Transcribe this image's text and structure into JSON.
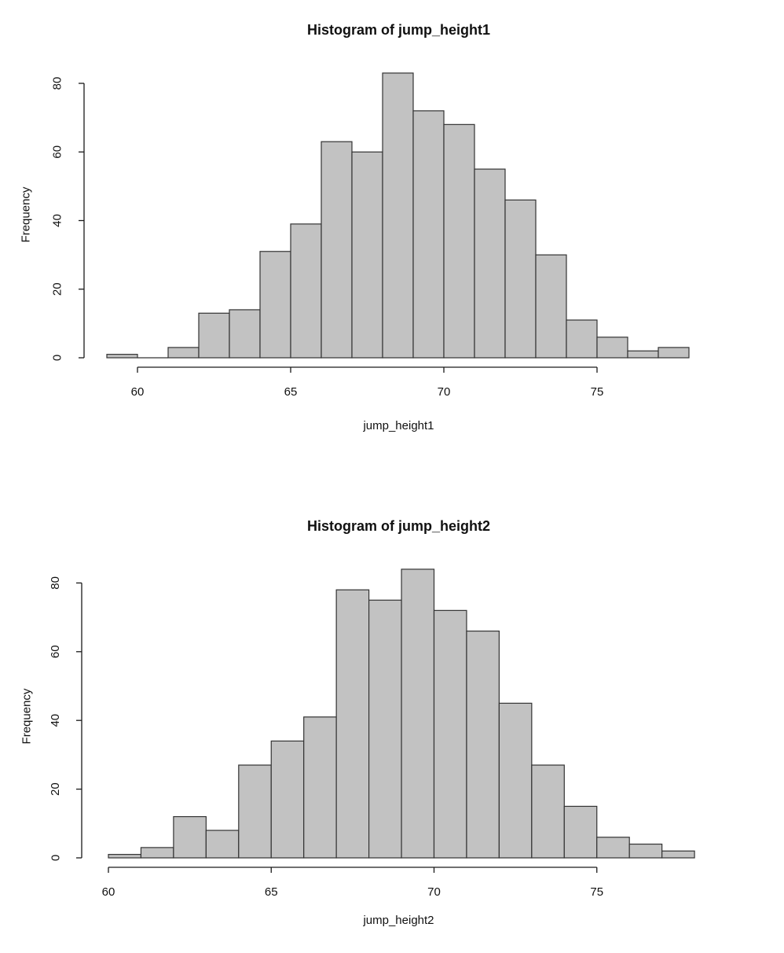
{
  "colors": {
    "background": "#ffffff",
    "bar_fill": "#c2c2c2",
    "bar_border": "#333333",
    "axis": "#1a1a1a",
    "text": "#111111"
  },
  "chart_data": [
    {
      "type": "bar",
      "subtype": "histogram",
      "title": "Histogram of jump_height1",
      "xlabel": "jump_height1",
      "ylabel": "Frequency",
      "bin_start": 59,
      "bin_width": 1,
      "counts": [
        1,
        0,
        3,
        13,
        14,
        31,
        39,
        63,
        60,
        83,
        72,
        68,
        55,
        46,
        30,
        11,
        6,
        2,
        3
      ],
      "x_ticks": [
        60,
        65,
        70,
        75
      ],
      "y_ticks": [
        0,
        20,
        40,
        60,
        80
      ],
      "xlim": [
        59,
        78
      ],
      "ylim": [
        0,
        85
      ],
      "grid": false,
      "legend": "none",
      "n_total": 600
    },
    {
      "type": "bar",
      "subtype": "histogram",
      "title": "Histogram of jump_height2",
      "xlabel": "jump_height2",
      "ylabel": "Frequency",
      "bin_start": 60,
      "bin_width": 1,
      "counts": [
        1,
        3,
        12,
        8,
        27,
        34,
        41,
        78,
        75,
        84,
        72,
        66,
        45,
        27,
        15,
        6,
        4,
        2
      ],
      "x_ticks": [
        60,
        65,
        70,
        75
      ],
      "y_ticks": [
        0,
        20,
        40,
        60,
        80
      ],
      "xlim": [
        60,
        78
      ],
      "ylim": [
        0,
        85
      ],
      "grid": false,
      "legend": "none",
      "n_total": 600
    }
  ]
}
